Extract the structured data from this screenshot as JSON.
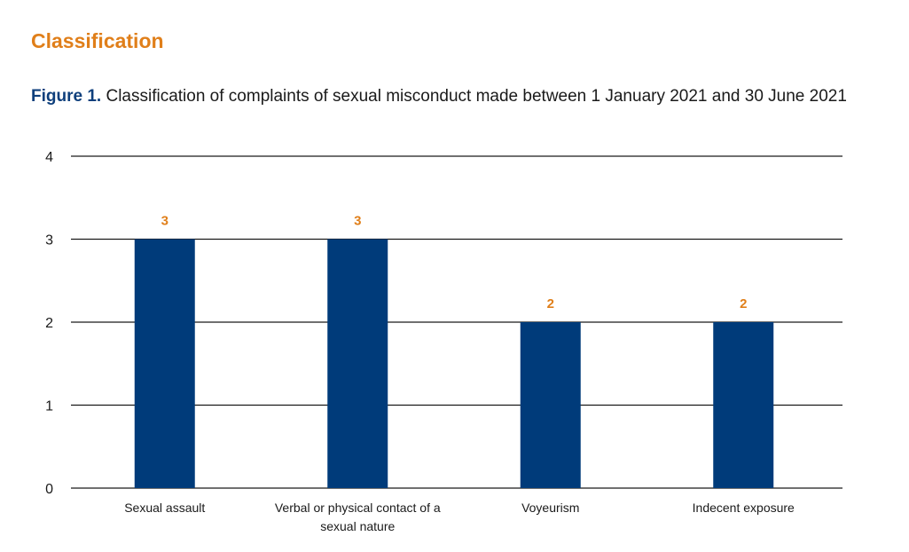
{
  "section_heading": "Classification",
  "caption": {
    "label": "Figure 1.",
    "text": "Classification of complaints of sexual misconduct made between 1 January 2021 and 30 June 2021"
  },
  "colors": {
    "bar": "#003b7a",
    "data_label": "#e07f1a",
    "gridline": "#1a1a1a"
  },
  "chart_data": {
    "type": "bar",
    "categories": [
      [
        "Sexual assault"
      ],
      [
        "Verbal or physical contact of a",
        "sexual nature"
      ],
      [
        "Voyeurism"
      ],
      [
        "Indecent exposure"
      ]
    ],
    "values": [
      3,
      3,
      2,
      2
    ],
    "ylim": [
      0,
      4
    ],
    "yticks": [
      0,
      1,
      2,
      3,
      4
    ],
    "grid": true,
    "legend": "none",
    "data_labels": true
  }
}
